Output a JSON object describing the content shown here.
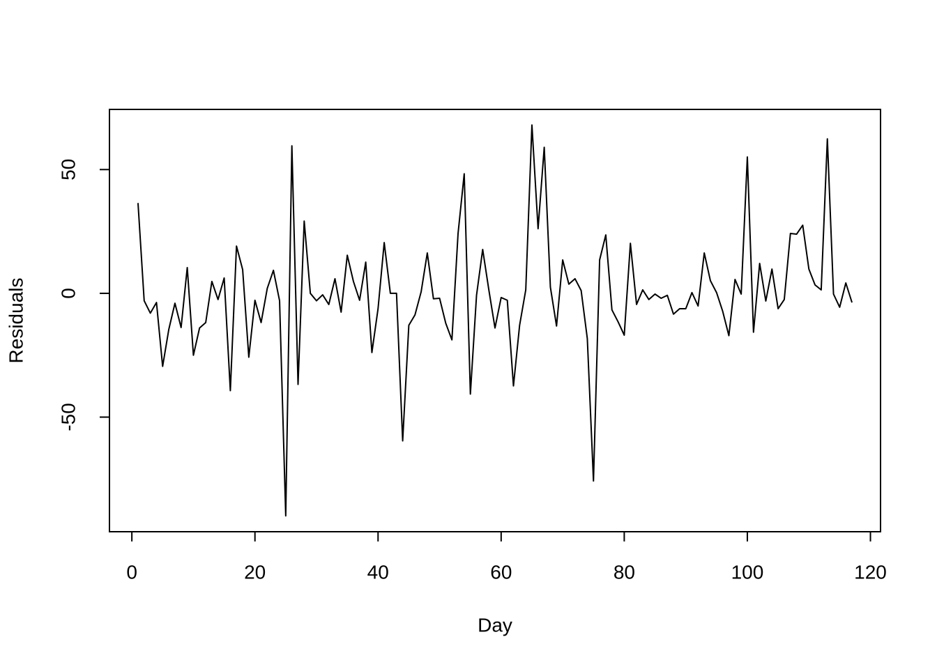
{
  "chart_data": {
    "type": "line",
    "xlabel": "Day",
    "ylabel": "Residuals",
    "color": "#000000",
    "x": [
      1,
      2,
      3,
      4,
      5,
      6,
      7,
      8,
      9,
      10,
      11,
      12,
      13,
      14,
      15,
      16,
      17,
      18,
      19,
      20,
      21,
      22,
      23,
      24,
      25,
      26,
      27,
      28,
      29,
      30,
      31,
      32,
      33,
      34,
      35,
      36,
      37,
      38,
      39,
      40,
      41,
      42,
      43,
      44,
      45,
      46,
      47,
      48,
      49,
      50,
      51,
      52,
      53,
      54,
      55,
      56,
      57,
      58,
      59,
      60,
      61,
      62,
      63,
      64,
      65,
      66,
      67,
      68,
      69,
      70,
      71,
      72,
      73,
      74,
      75,
      76,
      77,
      78,
      79,
      80,
      81,
      82,
      83,
      84,
      85,
      86,
      87,
      88,
      89,
      90,
      91,
      92,
      93,
      94,
      95,
      96,
      97,
      98,
      99,
      100,
      101,
      102,
      103,
      104,
      105,
      106,
      107,
      108,
      109,
      110,
      111,
      112,
      113,
      114,
      115,
      116,
      117
    ],
    "values": [
      36.5,
      -3,
      -8,
      -3.7,
      -29.5,
      -14.6,
      -4,
      -13.8,
      10.4,
      -25,
      -14,
      -11.8,
      4.8,
      -2.5,
      6.2,
      -39.3,
      19.1,
      9.6,
      -25.8,
      -2.8,
      -11.8,
      2,
      9.3,
      -3,
      -89.9,
      59.6,
      -36.8,
      29.2,
      0,
      -3,
      -0.6,
      -4.5,
      5.9,
      -7.6,
      15.4,
      4.8,
      -2.8,
      12.6,
      -23.9,
      -6.2,
      20.5,
      0,
      0,
      -59.6,
      -12.9,
      -8.7,
      0.6,
      16.3,
      -2.2,
      -2,
      -12.1,
      -18.8,
      24.2,
      48.3,
      -40.7,
      -0.8,
      17.7,
      1.4,
      -14,
      -1.7,
      -2.8,
      -37.4,
      -12.9,
      1.4,
      68,
      26.1,
      59,
      2.5,
      -13.2,
      13.5,
      3.7,
      5.9,
      1.1,
      -18.3,
      -75.8,
      13.5,
      23.6,
      -6.7,
      -11.5,
      -16.9,
      20.2,
      -4.5,
      1.4,
      -2.5,
      -0.3,
      -2,
      -0.8,
      -8.4,
      -6.2,
      -6.2,
      0.3,
      -5.1,
      16.3,
      5.1,
      0.3,
      -7.3,
      -17.1,
      5.6,
      -0.3,
      55.1,
      -15.7,
      12.1,
      -3.1,
      9.8,
      -6.2,
      -2.5,
      24.2,
      23.9,
      27.5,
      9.8,
      3.4,
      1.4,
      62.4,
      -0.3,
      -5.6,
      4.2,
      -3.7
    ],
    "xlim": [
      -3.64,
      121.64
    ],
    "ylim": [
      -96.3,
      74.3
    ],
    "xticks": [
      0,
      20,
      40,
      60,
      80,
      100,
      120
    ],
    "yticks": [
      -50,
      0,
      50
    ]
  }
}
